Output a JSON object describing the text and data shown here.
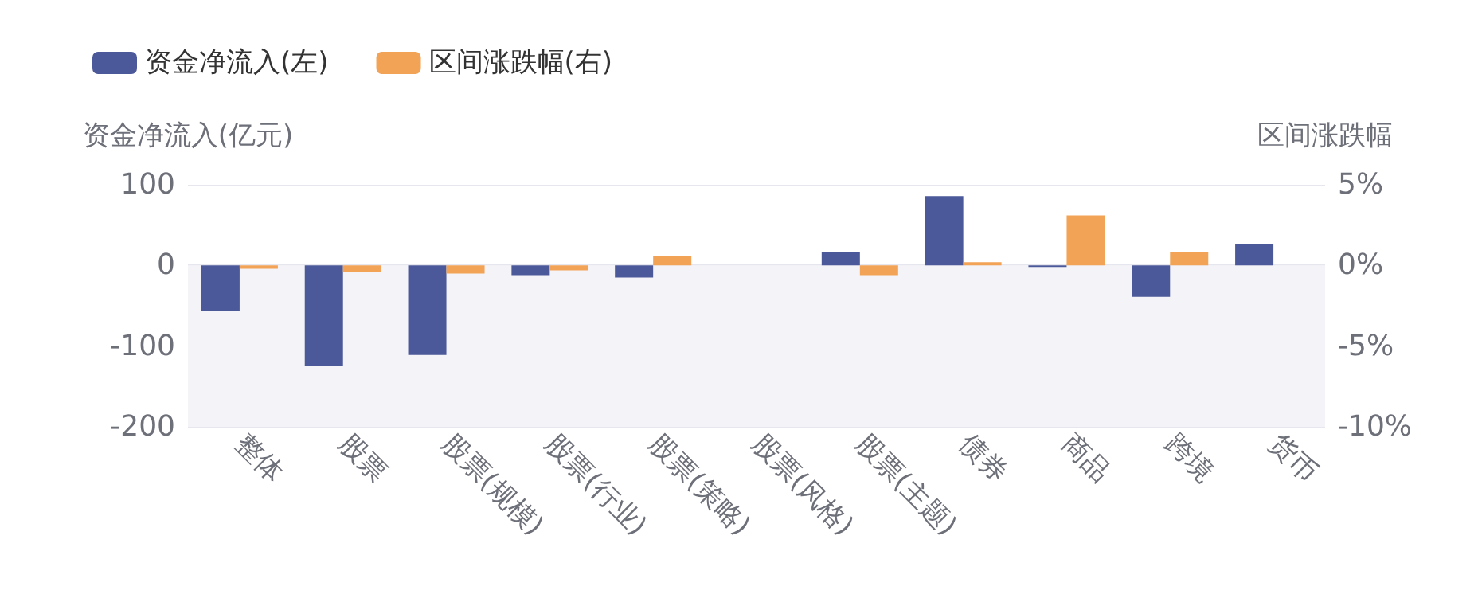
{
  "chart_data": {
    "type": "bar",
    "ylabel": "资金净流入(亿元)",
    "y2label": "区间涨跌幅",
    "categories": [
      "整体",
      "股票",
      "股票(规模)",
      "股票(行业)",
      "股票(策略)",
      "股票(风格)",
      "股票(主题)",
      "债券",
      "商品",
      "跨境",
      "货币"
    ],
    "series": [
      {
        "name": "资金净流入(左)",
        "color": "#4b5899",
        "values": [
          -56,
          -124,
          -111,
          -12,
          -15,
          0,
          17,
          86,
          -2,
          -39,
          27
        ]
      },
      {
        "name": "区间涨跌幅(右)",
        "color": "#f2a356",
        "axis": "y2",
        "values": [
          -0.2,
          -0.4,
          -0.5,
          -0.3,
          0.6,
          0,
          -0.6,
          0.2,
          3.1,
          0.8,
          0
        ]
      }
    ],
    "ylim": [
      -200,
      100
    ],
    "yticks": [
      -200,
      -100,
      0,
      100
    ],
    "y2lim": [
      -10,
      5
    ],
    "y2ticks": [
      {
        "value": -10,
        "label": "-10%"
      },
      {
        "value": -5,
        "label": "-5%"
      },
      {
        "value": 0,
        "label": "0%"
      },
      {
        "value": 5,
        "label": "5%"
      }
    ],
    "bands": [
      {
        "axis": "y",
        "from": -200,
        "to": 0,
        "color": "#f4f4f8"
      }
    ],
    "grid": "y",
    "legend": "top left"
  }
}
